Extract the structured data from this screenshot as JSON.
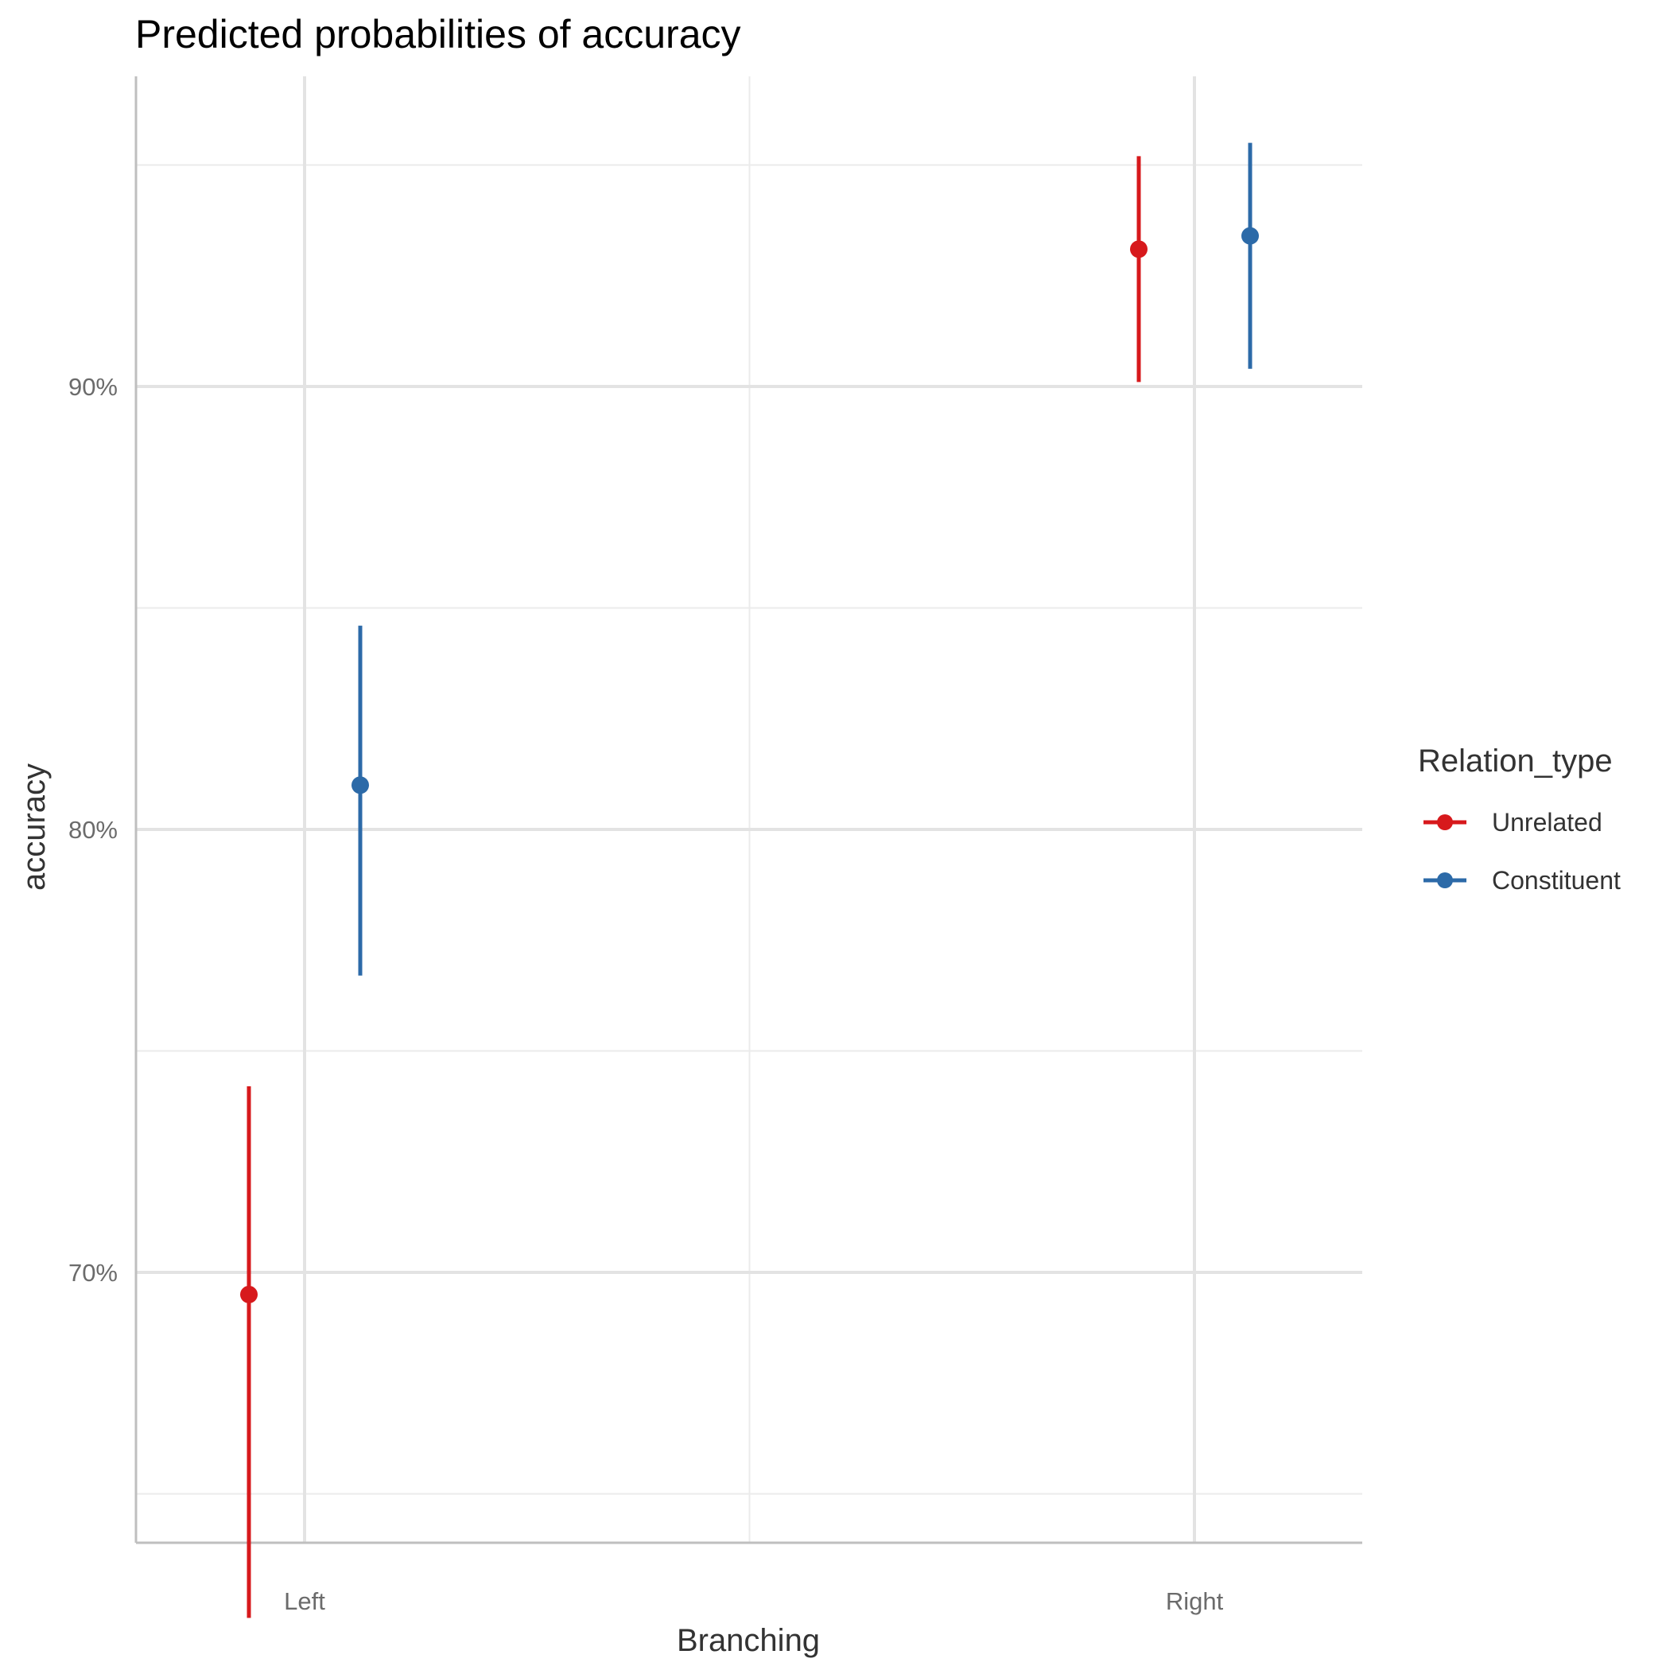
{
  "chart_data": {
    "type": "scatter",
    "title": "Predicted probabilities of accuracy",
    "xlabel": "Branching",
    "ylabel": "accuracy",
    "categories": [
      "Left",
      "Right"
    ],
    "y_ticks": [
      70,
      80,
      90
    ],
    "y_tick_labels": [
      "70%",
      "80%",
      "90%"
    ],
    "ylim": [
      63.9,
      97.9
    ],
    "grid": true,
    "legend": {
      "title": "Relation_type",
      "placement": "right"
    },
    "series": [
      {
        "name": "Unrelated",
        "color": "#d7191c",
        "values": [
          69.5,
          93.1
        ],
        "ci_low": [
          62.2,
          90.1
        ],
        "ci_high": [
          74.2,
          95.2
        ]
      },
      {
        "name": "Constituent",
        "color": "#2c6aa8",
        "values": [
          81.0,
          93.4
        ],
        "ci_low": [
          76.7,
          90.4
        ],
        "ci_high": [
          84.6,
          95.5
        ]
      }
    ]
  }
}
